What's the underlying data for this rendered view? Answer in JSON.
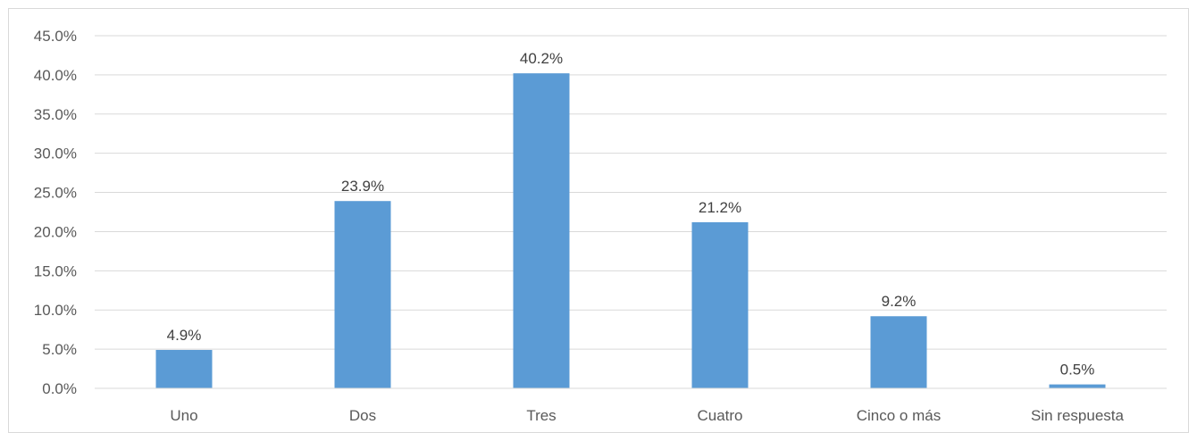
{
  "chart_data": {
    "type": "bar",
    "title": "",
    "xlabel": "",
    "ylabel": "",
    "categories": [
      "Uno",
      "Dos",
      "Tres",
      "Cuatro",
      "Cinco o más",
      "Sin respuesta"
    ],
    "values": [
      4.9,
      23.9,
      40.2,
      21.2,
      9.2,
      0.5
    ],
    "data_labels": [
      "4.9%",
      "23.9%",
      "40.2%",
      "21.2%",
      "9.2%",
      "0.5%"
    ],
    "ylim": [
      0,
      45
    ],
    "yticks": [
      0,
      5,
      10,
      15,
      20,
      25,
      30,
      35,
      40,
      45
    ],
    "ytick_labels": [
      "0.0%",
      "5.0%",
      "10.0%",
      "15.0%",
      "20.0%",
      "25.0%",
      "30.0%",
      "35.0%",
      "40.0%",
      "45.0%"
    ],
    "grid": true,
    "legend": "none",
    "colors": {
      "bar": "#5b9bd5",
      "grid": "#d9d9d9",
      "axis": "#d9d9d9",
      "text": "#595959"
    }
  }
}
